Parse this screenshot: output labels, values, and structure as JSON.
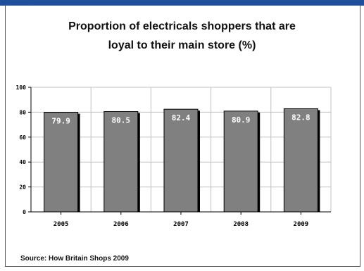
{
  "colors": {
    "accent": "#1f4e9a",
    "bar": "#808080",
    "bar_shadow": "#000000",
    "grid": "#c0c0c0",
    "label_text": "#ffffff"
  },
  "chart_data": {
    "type": "bar",
    "title": "Proportion of electricals shoppers that are loyal to their main store (%)",
    "categories": [
      "2005",
      "2006",
      "2007",
      "2008",
      "2009"
    ],
    "values": [
      79.9,
      80.5,
      82.4,
      80.9,
      82.8
    ],
    "value_labels": [
      "79.9",
      "80.5",
      "82.4",
      "80.9",
      "82.8"
    ],
    "yticks": [
      "0",
      "20",
      "40",
      "60",
      "80",
      "100"
    ],
    "ylim": [
      0,
      100
    ],
    "xlabel": "",
    "ylabel": "",
    "grid": true,
    "legend": "none"
  },
  "footer": {
    "source": "Source: How Britain Shops 2009"
  }
}
